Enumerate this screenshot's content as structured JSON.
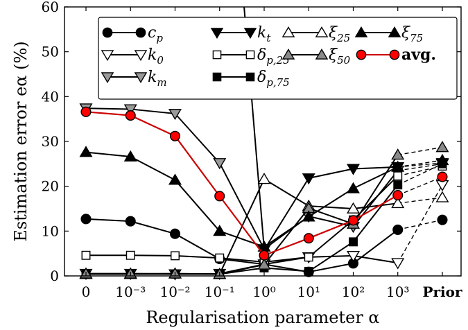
{
  "chart_data": {
    "type": "line",
    "title": "",
    "xlabel": "Regularisation parameter α",
    "ylabel": "Estimation error eα (%)",
    "x_ticks": [
      "0",
      "10⁻³",
      "10⁻²",
      "10⁻¹",
      "10⁰",
      "10¹",
      "10²",
      "10³",
      "Prior"
    ],
    "y_ticks": [
      "0",
      "10",
      "20",
      "30",
      "40",
      "50",
      "60"
    ],
    "ylim": [
      0,
      60
    ],
    "grid": false,
    "legend_position": "top-right",
    "prior_link": "dashed",
    "series": [
      {
        "name": "c_p",
        "label": "c",
        "sub": "p",
        "marker": "circle",
        "fill": "#000000",
        "line": "#000000",
        "values": [
          12.7,
          12.2,
          9.4,
          3.8,
          2.6,
          0.9,
          2.8,
          10.3
        ],
        "prior": 12.5
      },
      {
        "name": "k_0",
        "label": "k",
        "sub": "0",
        "marker": "tri-down",
        "fill": "#ffffff",
        "line": "#000000",
        "values": [
          0.5,
          0.5,
          0.4,
          0.5,
          2.6,
          4.2,
          4.5,
          2.9
        ],
        "prior": 20.3
      },
      {
        "name": "k_m",
        "label": "k",
        "sub": "m",
        "marker": "tri-down",
        "fill": "#9a9a9a",
        "line": "#000000",
        "values": [
          37.4,
          37.2,
          36.2,
          25.2,
          6.0,
          13.3,
          11.0,
          23.5
        ],
        "prior": 25.0
      },
      {
        "name": "k_t",
        "label": "k",
        "sub": "t",
        "marker": "tri-down",
        "fill": "#000000",
        "line": "#000000",
        "values": [
          null,
          null,
          null,
          null,
          5.8,
          21.8,
          23.9,
          24.3
        ],
        "prior": 25.2,
        "entry_line": [
          [
            3.55,
            60
          ],
          [
            4.0,
            6.0
          ]
        ]
      },
      {
        "name": "δ_p,25",
        "label": "δ",
        "sub": "p,25",
        "marker": "square",
        "fill": "#ffffff",
        "line": "#000000",
        "values": [
          4.6,
          4.6,
          4.5,
          4.0,
          3.1,
          4.2,
          12.5,
          22.3
        ],
        "prior": 24.5
      },
      {
        "name": "δ_p,75",
        "label": "δ",
        "sub": "p,75",
        "marker": "square",
        "fill": "#000000",
        "line": "#000000",
        "values": [
          0.4,
          0.4,
          0.4,
          0.4,
          1.8,
          1.0,
          7.6,
          20.3
        ],
        "prior": 25.0
      },
      {
        "name": "ξ_25",
        "label": "ξ",
        "sub": "25",
        "marker": "tri-up",
        "fill": "#ffffff",
        "line": "#000000",
        "values": [
          0.4,
          0.4,
          0.5,
          0.4,
          21.6,
          15.6,
          15.0,
          16.2
        ],
        "prior": 17.5
      },
      {
        "name": "ξ_50",
        "label": "ξ",
        "sub": "50",
        "marker": "tri-up",
        "fill": "#8a8a8a",
        "line": "#000000",
        "values": [
          0.5,
          0.5,
          0.5,
          0.4,
          2.5,
          15.1,
          11.6,
          27.0
        ],
        "prior": 28.7
      },
      {
        "name": "ξ_75",
        "label": "ξ",
        "sub": "75",
        "marker": "tri-up",
        "fill": "#000000",
        "line": "#000000",
        "values": [
          27.6,
          26.6,
          21.4,
          10.0,
          6.5,
          13.2,
          19.5,
          24.3
        ],
        "prior": 25.8
      },
      {
        "name": "avg.",
        "label": "avg.",
        "sub": "",
        "marker": "circle",
        "fill": "#ff0000",
        "line": "#cc0000",
        "values": [
          36.6,
          35.8,
          31.2,
          17.8,
          4.6,
          8.4,
          12.4,
          18.0
        ],
        "prior": 22.1
      }
    ]
  }
}
